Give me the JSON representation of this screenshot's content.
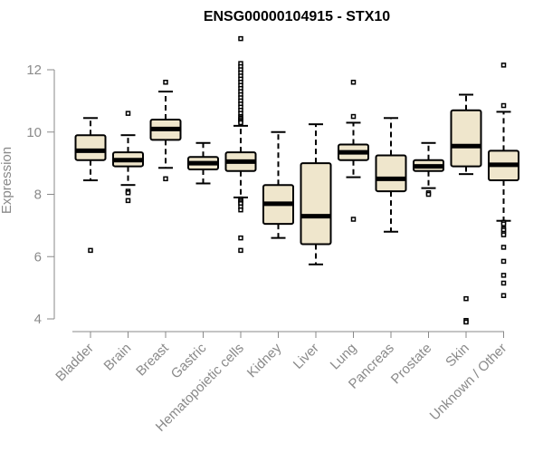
{
  "chart_data": {
    "type": "boxplot",
    "title": "ENSG00000104915 - STX10",
    "xlabel": "",
    "ylabel": "Expression",
    "ylim": [
      3.9,
      13.0
    ],
    "yticks": [
      "4",
      "6",
      "8",
      "10",
      "12"
    ],
    "colors": {
      "box_fill": "#efe6cc",
      "line": "#000000",
      "text": "#8a8a8a"
    },
    "categories": [
      "Bladder",
      "Brain",
      "Breast",
      "Gastric",
      "Hematopoietic cells",
      "Kidney",
      "Liver",
      "Lung",
      "Pancreas",
      "Prostate",
      "Skin",
      "Unknown / Other"
    ],
    "boxes": [
      {
        "name": "Bladder",
        "whisker_low": 8.45,
        "q1": 9.1,
        "median": 9.4,
        "q3": 9.9,
        "whisker_high": 10.45,
        "outliers": [
          6.2
        ]
      },
      {
        "name": "Brain",
        "whisker_low": 8.3,
        "q1": 8.9,
        "median": 9.1,
        "q3": 9.35,
        "whisker_high": 9.9,
        "outliers": [
          10.6,
          8.1,
          8.05,
          7.8
        ]
      },
      {
        "name": "Breast",
        "whisker_low": 8.85,
        "q1": 9.75,
        "median": 10.1,
        "q3": 10.4,
        "whisker_high": 11.3,
        "outliers": [
          11.6,
          8.5
        ]
      },
      {
        "name": "Gastric",
        "whisker_low": 8.35,
        "q1": 8.8,
        "median": 9.0,
        "q3": 9.2,
        "whisker_high": 9.65,
        "outliers": []
      },
      {
        "name": "Hematopoietic cells",
        "whisker_low": 7.9,
        "q1": 8.75,
        "median": 9.05,
        "q3": 9.35,
        "whisker_high": 10.2,
        "outliers": [
          13.0,
          12.2,
          12.1,
          12.0,
          11.9,
          11.8,
          11.7,
          11.6,
          11.5,
          11.4,
          11.3,
          11.2,
          11.1,
          11.0,
          10.9,
          10.8,
          10.7,
          10.6,
          10.5,
          10.45,
          10.4,
          10.35,
          10.3,
          7.85,
          7.8,
          7.75,
          7.7,
          7.6,
          7.5,
          6.6,
          6.2
        ]
      },
      {
        "name": "Kidney",
        "whisker_low": 6.6,
        "q1": 7.05,
        "median": 7.7,
        "q3": 8.3,
        "whisker_high": 10.0,
        "outliers": []
      },
      {
        "name": "Liver",
        "whisker_low": 5.75,
        "q1": 6.4,
        "median": 7.3,
        "q3": 9.0,
        "whisker_high": 10.25,
        "outliers": []
      },
      {
        "name": "Lung",
        "whisker_low": 8.55,
        "q1": 9.1,
        "median": 9.35,
        "q3": 9.6,
        "whisker_high": 10.3,
        "outliers": [
          11.6,
          10.5,
          7.2
        ]
      },
      {
        "name": "Pancreas",
        "whisker_low": 6.8,
        "q1": 8.1,
        "median": 8.5,
        "q3": 9.25,
        "whisker_high": 10.45,
        "outliers": []
      },
      {
        "name": "Prostate",
        "whisker_low": 8.2,
        "q1": 8.75,
        "median": 8.9,
        "q3": 9.1,
        "whisker_high": 9.65,
        "outliers": [
          8.05,
          8.0
        ]
      },
      {
        "name": "Skin",
        "whisker_low": 8.65,
        "q1": 8.9,
        "median": 9.55,
        "q3": 10.7,
        "whisker_high": 11.2,
        "outliers": [
          4.65,
          3.95,
          3.9
        ]
      },
      {
        "name": "Unknown / Other",
        "whisker_low": 7.15,
        "q1": 8.45,
        "median": 8.95,
        "q3": 9.4,
        "whisker_high": 10.65,
        "outliers": [
          12.15,
          10.85,
          7.1,
          7.05,
          6.9,
          6.85,
          6.75,
          6.7,
          6.3,
          5.85,
          5.4,
          5.15,
          4.75
        ]
      }
    ]
  }
}
